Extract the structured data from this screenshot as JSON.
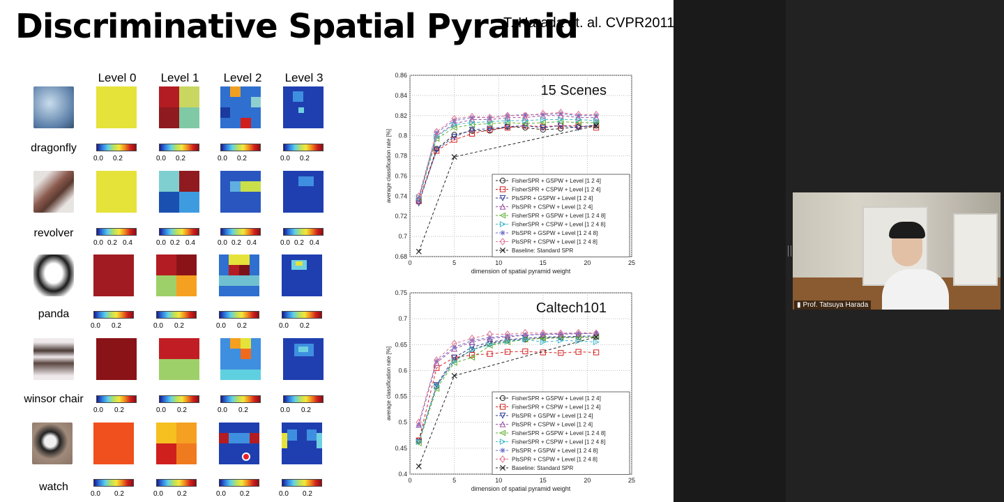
{
  "slide": {
    "title": "Discriminative Spatial Pyramid",
    "citation": "T. Harada et. al. CVPR2011",
    "levels": [
      "Level 0",
      "Level 1",
      "Level 2",
      "Level 3"
    ],
    "rows": [
      {
        "label": "dragonfly",
        "ticks": [
          "0.0",
          "0.2"
        ]
      },
      {
        "label": "revolver",
        "ticks": [
          "0.0",
          "0.2",
          "0.4"
        ]
      },
      {
        "label": "panda",
        "ticks": [
          "0.0",
          "0.2"
        ]
      },
      {
        "label": "winsor chair",
        "ticks": [
          "0.0",
          "0.2"
        ]
      },
      {
        "label": "watch",
        "ticks": [
          "0.0",
          "0.2"
        ]
      }
    ]
  },
  "video": {
    "participant_name": "Prof. Tatsuya Harada"
  },
  "chart_data": [
    {
      "type": "line",
      "title": "15 Scenes",
      "xlabel": "dimension of spatial pyramid weight",
      "ylabel": "average classification rate [%]",
      "xlim": [
        0,
        25
      ],
      "ylim": [
        0.68,
        0.86
      ],
      "xticks": [
        "0",
        "5",
        "10",
        "15",
        "20",
        "25"
      ],
      "yticks": [
        "0.68",
        "0.7",
        "0.72",
        "0.74",
        "0.76",
        "0.78",
        "0.8",
        "0.82",
        "0.84",
        "0.86"
      ],
      "grid": true,
      "legend_position": "bottom-right",
      "x": [
        1,
        3,
        5,
        7,
        9,
        11,
        13,
        15,
        17,
        19,
        21
      ],
      "series": [
        {
          "name": "FisherSPR + GSPW + Level [1 2 4]",
          "color": "#222222",
          "marker": "o",
          "values": [
            0.735,
            0.787,
            0.801,
            0.805,
            0.805,
            0.809,
            0.808,
            0.806,
            0.807,
            0.809,
            0.81
          ]
        },
        {
          "name": "FisherSPR + CSPW + Level [1 2 4]",
          "color": "#d62020",
          "marker": "s",
          "values": [
            0.735,
            0.785,
            0.796,
            0.802,
            0.806,
            0.808,
            0.81,
            0.809,
            0.81,
            0.81,
            0.808
          ]
        },
        {
          "name": "PlsSPR + GSPW + Level  [1 2 4]",
          "color": "#2b3a9a",
          "marker": "v",
          "values": [
            0.733,
            0.786,
            0.799,
            0.806,
            0.807,
            0.809,
            0.81,
            0.808,
            0.81,
            0.808,
            0.811
          ]
        },
        {
          "name": "PlsSPR + CSPW + Level  [1 2 4]",
          "color": "#9b4fa0",
          "marker": "^",
          "values": [
            0.737,
            0.8,
            0.812,
            0.816,
            0.816,
            0.818,
            0.818,
            0.82,
            0.82,
            0.818,
            0.818
          ]
        },
        {
          "name": "FisherSPR + GSPW + Level  [1 2 4 8]",
          "color": "#5fae2f",
          "marker": "<",
          "values": [
            0.738,
            0.797,
            0.808,
            0.811,
            0.812,
            0.813,
            0.812,
            0.813,
            0.814,
            0.813,
            0.813
          ]
        },
        {
          "name": "FisherSPR + CSPW + Level  [1 2 4 8]",
          "color": "#3fb8c8",
          "marker": ">",
          "values": [
            0.739,
            0.799,
            0.811,
            0.813,
            0.814,
            0.815,
            0.815,
            0.816,
            0.816,
            0.816,
            0.815
          ]
        },
        {
          "name": "PlsSPR + GSPW + Level  [1 2 4 8]",
          "color": "#6b6fc8",
          "marker": "*",
          "values": [
            0.738,
            0.803,
            0.815,
            0.818,
            0.818,
            0.82,
            0.821,
            0.821,
            0.822,
            0.82,
            0.82
          ]
        },
        {
          "name": "PlsSPR + CSPW + Level  [1 2 4 8]",
          "color": "#e06f8f",
          "marker": "d",
          "values": [
            0.74,
            0.804,
            0.817,
            0.819,
            0.818,
            0.82,
            0.82,
            0.822,
            0.823,
            0.821,
            0.821
          ]
        },
        {
          "name": "Baseline: Standard SPR",
          "color": "#222222",
          "marker": "x",
          "x": [
            1,
            5,
            21
          ],
          "values": [
            0.685,
            0.779,
            0.81
          ]
        }
      ]
    },
    {
      "type": "line",
      "title": "Caltech101",
      "xlabel": "dimension of spatial pyramid weight",
      "ylabel": "average classification rate [%]",
      "xlim": [
        0,
        25
      ],
      "ylim": [
        0.4,
        0.75
      ],
      "xticks": [
        "0",
        "5",
        "10",
        "15",
        "20",
        "25"
      ],
      "yticks": [
        "0.4",
        "0.45",
        "0.5",
        "0.55",
        "0.6",
        "0.65",
        "0.7",
        "0.75"
      ],
      "grid": true,
      "legend_position": "bottom-right",
      "x": [
        1,
        3,
        5,
        7,
        9,
        11,
        13,
        15,
        17,
        19,
        21
      ],
      "series": [
        {
          "name": "FisherSPR + GSPW + Level [1 2 4]",
          "color": "#222222",
          "marker": "o",
          "values": [
            0.465,
            0.57,
            0.62,
            0.64,
            0.652,
            0.658,
            0.66,
            0.663,
            0.664,
            0.664,
            0.665
          ]
        },
        {
          "name": "FisherSPR + CSPW + Level [1 2 4]",
          "color": "#d62020",
          "marker": "s",
          "values": [
            0.465,
            0.605,
            0.625,
            0.63,
            0.632,
            0.636,
            0.637,
            0.635,
            0.634,
            0.636,
            0.635
          ]
        },
        {
          "name": "PlsSPR + GSPW + Level  [1 2 4]",
          "color": "#2b3a9a",
          "marker": "v",
          "values": [
            0.462,
            0.572,
            0.625,
            0.645,
            0.655,
            0.66,
            0.662,
            0.665,
            0.665,
            0.666,
            0.667
          ]
        },
        {
          "name": "PlsSPR + CSPW + Level  [1 2 4]",
          "color": "#9b4fa0",
          "marker": "^",
          "values": [
            0.495,
            0.615,
            0.642,
            0.655,
            0.662,
            0.665,
            0.668,
            0.67,
            0.67,
            0.671,
            0.672
          ]
        },
        {
          "name": "FisherSPR + GSPW + Level  [1 2 4 8]",
          "color": "#5fae2f",
          "marker": "<",
          "values": [
            0.46,
            0.565,
            0.615,
            0.625,
            0.648,
            0.655,
            0.66,
            0.662,
            0.663,
            0.664,
            0.665
          ]
        },
        {
          "name": "FisherSPR + CSPW + Level  [1 2 4 8]",
          "color": "#3fb8c8",
          "marker": ">",
          "values": [
            0.462,
            0.57,
            0.618,
            0.64,
            0.65,
            0.656,
            0.66,
            0.655,
            0.658,
            0.657,
            0.655
          ]
        },
        {
          "name": "PlsSPR + GSPW + Level  [1 2 4 8]",
          "color": "#6b6fc8",
          "marker": "*",
          "values": [
            0.495,
            0.618,
            0.645,
            0.658,
            0.664,
            0.667,
            0.669,
            0.67,
            0.671,
            0.671,
            0.672
          ]
        },
        {
          "name": "PlsSPR + CSPW + Level  [1 2 4 8]",
          "color": "#e06f8f",
          "marker": "d",
          "values": [
            0.5,
            0.62,
            0.652,
            0.662,
            0.67,
            0.67,
            0.673,
            0.672,
            0.672,
            0.673,
            0.672
          ]
        },
        {
          "name": "Baseline: Standard SPR",
          "color": "#222222",
          "marker": "x",
          "x": [
            1,
            5,
            21
          ],
          "values": [
            0.415,
            0.59,
            0.665
          ]
        }
      ]
    }
  ]
}
